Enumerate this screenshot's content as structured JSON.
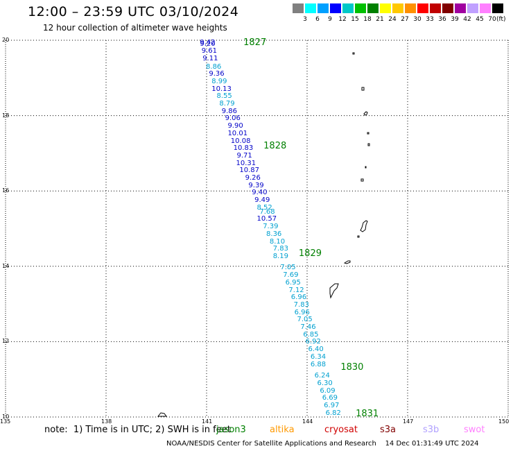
{
  "header": {
    "title": "12:00 – 23:59 UTC 03/10/2024",
    "subtitle": "12 hour collection of altimeter wave heights"
  },
  "legend": {
    "colors": [
      "#808080",
      "#00ffff",
      "#00a0ff",
      "#0000ff",
      "#00c8c8",
      "#00c000",
      "#008000",
      "#ffff00",
      "#ffc800",
      "#ff9000",
      "#ff0000",
      "#c00000",
      "#800000",
      "#a000a0",
      "#c0a0ff",
      "#ff80ff",
      "#000000"
    ],
    "labels": [
      "3",
      "6",
      "9",
      "12",
      "15",
      "18",
      "21",
      "24",
      "27",
      "30",
      "33",
      "36",
      "39",
      "42",
      "45",
      "70"
    ],
    "unit": "(ft)"
  },
  "axes": {
    "x_ticks": [
      "135",
      "138",
      "141",
      "144",
      "147",
      "150"
    ],
    "y_ticks": [
      "20",
      "18",
      "16",
      "14",
      "12",
      "10"
    ],
    "x_range": [
      135,
      150
    ],
    "y_range": [
      10,
      20
    ]
  },
  "track": {
    "pass_ids": [
      {
        "label": "1827",
        "lon": 142.1,
        "lat": 19.93
      },
      {
        "label": "1828",
        "lon": 142.7,
        "lat": 17.18
      },
      {
        "label": "1829",
        "lon": 143.75,
        "lat": 14.32
      },
      {
        "label": "1830",
        "lon": 145.0,
        "lat": 11.3
      },
      {
        "label": "1831",
        "lon": 145.45,
        "lat": 10.08
      }
    ],
    "points": [
      {
        "v": "9.42",
        "lon": 140.8,
        "lat": 19.93,
        "c": "#0000c8"
      },
      {
        "v": "9.20",
        "lon": 140.8,
        "lat": 19.89,
        "c": "#0000c8"
      },
      {
        "v": "9.61",
        "lon": 140.85,
        "lat": 19.7,
        "c": "#0000c8"
      },
      {
        "v": "9.11",
        "lon": 140.88,
        "lat": 19.5,
        "c": "#0000c8"
      },
      {
        "v": "8.86",
        "lon": 140.98,
        "lat": 19.29,
        "c": "#00a0d0"
      },
      {
        "v": "9.36",
        "lon": 141.07,
        "lat": 19.09,
        "c": "#0000c8"
      },
      {
        "v": "8.99",
        "lon": 141.15,
        "lat": 18.9,
        "c": "#00a0d0"
      },
      {
        "v": "10.13",
        "lon": 141.15,
        "lat": 18.7,
        "c": "#0000c8"
      },
      {
        "v": "8.55",
        "lon": 141.3,
        "lat": 18.5,
        "c": "#00a0d0"
      },
      {
        "v": "8.79",
        "lon": 141.38,
        "lat": 18.3,
        "c": "#00a0d0"
      },
      {
        "v": "9.86",
        "lon": 141.45,
        "lat": 18.1,
        "c": "#0000c8"
      },
      {
        "v": "9.06",
        "lon": 141.55,
        "lat": 17.91,
        "c": "#0000c8"
      },
      {
        "v": "9.90",
        "lon": 141.63,
        "lat": 17.71,
        "c": "#0000c8"
      },
      {
        "v": "10.01",
        "lon": 141.63,
        "lat": 17.51,
        "c": "#0000c8"
      },
      {
        "v": "10.08",
        "lon": 141.72,
        "lat": 17.31,
        "c": "#0000c8"
      },
      {
        "v": "10.83",
        "lon": 141.8,
        "lat": 17.12,
        "c": "#0000c8"
      },
      {
        "v": "9.71",
        "lon": 141.9,
        "lat": 16.93,
        "c": "#0000c8"
      },
      {
        "v": "10.31",
        "lon": 141.88,
        "lat": 16.73,
        "c": "#0000c8"
      },
      {
        "v": "10.87",
        "lon": 141.98,
        "lat": 16.53,
        "c": "#0000c8"
      },
      {
        "v": "9.26",
        "lon": 142.15,
        "lat": 16.34,
        "c": "#0000c8"
      },
      {
        "v": "9.39",
        "lon": 142.25,
        "lat": 16.14,
        "c": "#0000c8"
      },
      {
        "v": "9.40",
        "lon": 142.35,
        "lat": 15.94,
        "c": "#0000c8"
      },
      {
        "v": "9.49",
        "lon": 142.43,
        "lat": 15.74,
        "c": "#0000c8"
      },
      {
        "v": "8.52",
        "lon": 142.5,
        "lat": 15.54,
        "c": "#00a0d0"
      },
      {
        "v": "7.68",
        "lon": 142.58,
        "lat": 15.44,
        "c": "#00a0d0"
      },
      {
        "v": "10.57",
        "lon": 142.5,
        "lat": 15.24,
        "c": "#0000c8"
      },
      {
        "v": "7.39",
        "lon": 142.68,
        "lat": 15.04,
        "c": "#00a0d0"
      },
      {
        "v": "8.36",
        "lon": 142.78,
        "lat": 14.84,
        "c": "#00a0d0"
      },
      {
        "v": "8.10",
        "lon": 142.88,
        "lat": 14.64,
        "c": "#00a0d0"
      },
      {
        "v": "7.83",
        "lon": 142.98,
        "lat": 14.45,
        "c": "#00a0d0"
      },
      {
        "v": "8.19",
        "lon": 142.98,
        "lat": 14.26,
        "c": "#00a0d0"
      },
      {
        "v": "7.05",
        "lon": 143.2,
        "lat": 13.96,
        "c": "#00a0d0"
      },
      {
        "v": "7.69",
        "lon": 143.28,
        "lat": 13.76,
        "c": "#00a0d0"
      },
      {
        "v": "6.95",
        "lon": 143.35,
        "lat": 13.56,
        "c": "#00a0d0"
      },
      {
        "v": "7.12",
        "lon": 143.45,
        "lat": 13.36,
        "c": "#00a0d0"
      },
      {
        "v": "6.96",
        "lon": 143.52,
        "lat": 13.17,
        "c": "#00a0d0"
      },
      {
        "v": "7.83",
        "lon": 143.6,
        "lat": 12.97,
        "c": "#00a0d0"
      },
      {
        "v": "6.96",
        "lon": 143.62,
        "lat": 12.77,
        "c": "#00a0d0"
      },
      {
        "v": "7.05",
        "lon": 143.7,
        "lat": 12.57,
        "c": "#00a0d0"
      },
      {
        "v": "7.46",
        "lon": 143.8,
        "lat": 12.38,
        "c": "#00a0d0"
      },
      {
        "v": "6.85",
        "lon": 143.88,
        "lat": 12.18,
        "c": "#00a0d0"
      },
      {
        "v": "6.92",
        "lon": 143.95,
        "lat": 11.98,
        "c": "#00a0d0"
      },
      {
        "v": "6.40",
        "lon": 144.03,
        "lat": 11.78,
        "c": "#00a0d0"
      },
      {
        "v": "6.34",
        "lon": 144.1,
        "lat": 11.58,
        "c": "#00a0d0"
      },
      {
        "v": "6.88",
        "lon": 144.1,
        "lat": 11.38,
        "c": "#00a0d0"
      },
      {
        "v": "6.24",
        "lon": 144.22,
        "lat": 11.09,
        "c": "#00a0d0"
      },
      {
        "v": "6.30",
        "lon": 144.3,
        "lat": 10.89,
        "c": "#00a0d0"
      },
      {
        "v": "6.09",
        "lon": 144.38,
        "lat": 10.69,
        "c": "#00a0d0"
      },
      {
        "v": "6.69",
        "lon": 144.45,
        "lat": 10.49,
        "c": "#00a0d0"
      },
      {
        "v": "6.97",
        "lon": 144.5,
        "lat": 10.3,
        "c": "#00a0d0"
      },
      {
        "v": "6.82",
        "lon": 144.55,
        "lat": 10.09,
        "c": "#00a0d0"
      }
    ]
  },
  "note": "note:  1) Time is in UTC; 2) SWH is in feet",
  "satellites": [
    {
      "name": "jason3",
      "color": "#008000"
    },
    {
      "name": "altika",
      "color": "#ff9900"
    },
    {
      "name": "cryosat",
      "color": "#d00000"
    },
    {
      "name": "s3a",
      "color": "#800000"
    },
    {
      "name": "s3b",
      "color": "#b0a0ff"
    },
    {
      "name": "swot",
      "color": "#ff80ff"
    }
  ],
  "footer": "NOAA/NESDIS Center for Satellite Applications and Research    14 Dec 01:31:49 UTC 2024"
}
